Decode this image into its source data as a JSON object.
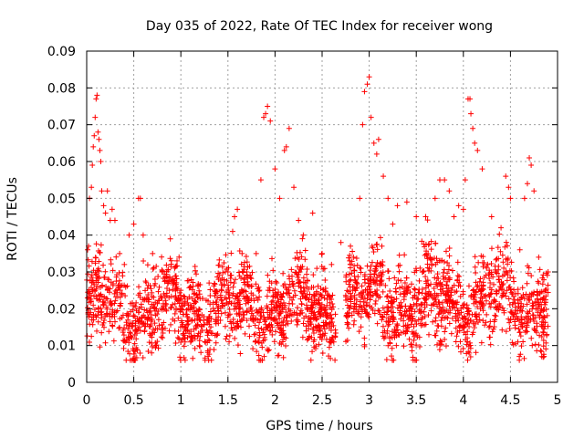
{
  "chart_data": {
    "type": "scatter",
    "title": "Day 035 of 2022, Rate Of TEC Index for receiver wong",
    "xlabel": "GPS time / hours",
    "ylabel": "ROTI / TECUs",
    "xlim": [
      0,
      5
    ],
    "ylim": [
      0,
      0.09
    ],
    "x_ticks": [
      0,
      0.5,
      1,
      1.5,
      2,
      2.5,
      3,
      3.5,
      4,
      4.5,
      5
    ],
    "x_tick_labels": [
      "0",
      "0.5",
      "1",
      "1.5",
      "2",
      "2.5",
      "3",
      "3.5",
      "4",
      "4.5",
      "5"
    ],
    "y_ticks": [
      0,
      0.01,
      0.02,
      0.03,
      0.04,
      0.05,
      0.06,
      0.07,
      0.08,
      0.09
    ],
    "y_tick_labels": [
      "0",
      "0.01",
      "0.02",
      "0.03",
      "0.04",
      "0.05",
      "0.06",
      "0.07",
      "0.08",
      "0.09"
    ],
    "grid": true,
    "marker": "+",
    "color": "#ff0000",
    "series": [
      {
        "name": "ROTI",
        "points": [
          [
            0.01,
            0.036
          ],
          [
            0.02,
            0.037
          ],
          [
            0.03,
            0.05
          ],
          [
            0.05,
            0.053
          ],
          [
            0.06,
            0.059
          ],
          [
            0.07,
            0.064
          ],
          [
            0.08,
            0.067
          ],
          [
            0.09,
            0.072
          ],
          [
            0.1,
            0.077
          ],
          [
            0.11,
            0.078
          ],
          [
            0.12,
            0.068
          ],
          [
            0.13,
            0.066
          ],
          [
            0.14,
            0.063
          ],
          [
            0.15,
            0.06
          ],
          [
            0.16,
            0.052
          ],
          [
            0.18,
            0.048
          ],
          [
            0.2,
            0.046
          ],
          [
            0.22,
            0.052
          ],
          [
            0.25,
            0.044
          ],
          [
            0.27,
            0.047
          ],
          [
            0.3,
            0.044
          ],
          [
            0.35,
            0.035
          ],
          [
            0.4,
            0.032
          ],
          [
            0.45,
            0.04
          ],
          [
            0.5,
            0.043
          ],
          [
            0.55,
            0.05
          ],
          [
            0.57,
            0.05
          ],
          [
            0.6,
            0.04
          ],
          [
            0.7,
            0.035
          ],
          [
            0.8,
            0.03
          ],
          [
            0.9,
            0.028
          ],
          [
            1.0,
            0.025
          ],
          [
            1.1,
            0.026
          ],
          [
            1.2,
            0.024
          ],
          [
            1.3,
            0.027
          ],
          [
            1.4,
            0.028
          ],
          [
            1.5,
            0.03
          ],
          [
            1.55,
            0.041
          ],
          [
            1.57,
            0.045
          ],
          [
            1.6,
            0.047
          ],
          [
            1.65,
            0.035
          ],
          [
            1.7,
            0.03
          ],
          [
            1.8,
            0.035
          ],
          [
            1.85,
            0.055
          ],
          [
            1.88,
            0.072
          ],
          [
            1.9,
            0.073
          ],
          [
            1.92,
            0.075
          ],
          [
            1.95,
            0.071
          ],
          [
            2.0,
            0.058
          ],
          [
            2.05,
            0.05
          ],
          [
            2.1,
            0.063
          ],
          [
            2.12,
            0.064
          ],
          [
            2.15,
            0.069
          ],
          [
            2.2,
            0.053
          ],
          [
            2.25,
            0.044
          ],
          [
            2.3,
            0.04
          ],
          [
            2.4,
            0.046
          ],
          [
            2.5,
            0.035
          ],
          [
            2.6,
            0.032
          ],
          [
            2.7,
            0.038
          ],
          [
            2.8,
            0.032
          ],
          [
            2.9,
            0.05
          ],
          [
            2.93,
            0.07
          ],
          [
            2.95,
            0.079
          ],
          [
            2.98,
            0.081
          ],
          [
            3.0,
            0.083
          ],
          [
            3.02,
            0.072
          ],
          [
            3.05,
            0.065
          ],
          [
            3.08,
            0.062
          ],
          [
            3.1,
            0.066
          ],
          [
            3.15,
            0.056
          ],
          [
            3.2,
            0.05
          ],
          [
            3.25,
            0.043
          ],
          [
            3.3,
            0.048
          ],
          [
            3.4,
            0.049
          ],
          [
            3.5,
            0.045
          ],
          [
            3.6,
            0.045
          ],
          [
            3.7,
            0.05
          ],
          [
            3.75,
            0.055
          ],
          [
            3.8,
            0.055
          ],
          [
            3.85,
            0.052
          ],
          [
            3.9,
            0.045
          ],
          [
            3.95,
            0.048
          ],
          [
            4.0,
            0.047
          ],
          [
            4.02,
            0.055
          ],
          [
            4.05,
            0.077
          ],
          [
            4.07,
            0.077
          ],
          [
            4.08,
            0.073
          ],
          [
            4.1,
            0.069
          ],
          [
            4.12,
            0.065
          ],
          [
            4.15,
            0.063
          ],
          [
            4.2,
            0.058
          ],
          [
            4.3,
            0.045
          ],
          [
            4.4,
            0.042
          ],
          [
            4.45,
            0.056
          ],
          [
            4.48,
            0.053
          ],
          [
            4.5,
            0.05
          ],
          [
            4.6,
            0.036
          ],
          [
            4.65,
            0.05
          ],
          [
            4.68,
            0.054
          ],
          [
            4.7,
            0.061
          ],
          [
            4.72,
            0.059
          ],
          [
            4.75,
            0.052
          ],
          [
            4.8,
            0.034
          ],
          [
            4.9,
            0.03
          ]
        ]
      }
    ],
    "background_noise": {
      "segments": [
        {
          "from": 0.0,
          "to": 2.65,
          "y_center": 0.02,
          "y_spread": 0.012
        },
        {
          "from": 2.75,
          "to": 4.9,
          "y_center": 0.022,
          "y_spread": 0.013
        }
      ],
      "note": "dense band of ROTI samples roughly between 0.007 and 0.035 TECUs"
    }
  }
}
